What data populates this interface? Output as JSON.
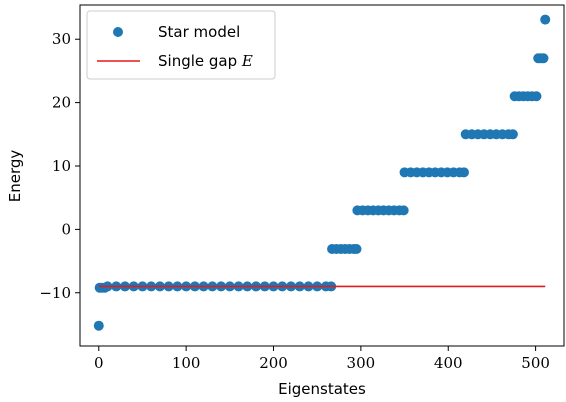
{
  "chart_data": {
    "type": "scatter",
    "xlabel": "Eigenstates",
    "ylabel": "Energy",
    "xlim": [
      -21.5,
      532.5
    ],
    "ylim": [
      -18.4,
      35.4
    ],
    "xticks": [
      0,
      100,
      200,
      300,
      400,
      500
    ],
    "xtick_labels": [
      "0",
      "100",
      "200",
      "300",
      "400",
      "500"
    ],
    "yticks": [
      -10,
      0,
      10,
      20,
      30
    ],
    "ytick_labels": [
      "−10",
      "0",
      "10",
      "20",
      "30"
    ],
    "grid": false,
    "legend_position": "top-left",
    "legend": {
      "star_label": "Star model",
      "gap_label_prefix": "Single gap ",
      "gap_label_symbol": "E"
    },
    "series": [
      {
        "name": "Star model",
        "kind": "scatter",
        "color": "#1f77b4",
        "points": [
          {
            "x": 0,
            "y": -15.2
          },
          {
            "x": 1,
            "y": -9.2
          },
          {
            "x": 4,
            "y": -9.2
          },
          {
            "x": 7,
            "y": -9.2
          },
          {
            "x": 10,
            "y": -9.0
          },
          {
            "x": 20,
            "y": -9.0
          },
          {
            "x": 30,
            "y": -9.0
          },
          {
            "x": 40,
            "y": -9.0
          },
          {
            "x": 50,
            "y": -9.0
          },
          {
            "x": 60,
            "y": -9.0
          },
          {
            "x": 70,
            "y": -9.0
          },
          {
            "x": 80,
            "y": -9.0
          },
          {
            "x": 90,
            "y": -9.0
          },
          {
            "x": 100,
            "y": -9.0
          },
          {
            "x": 110,
            "y": -9.0
          },
          {
            "x": 120,
            "y": -9.0
          },
          {
            "x": 130,
            "y": -9.0
          },
          {
            "x": 140,
            "y": -9.0
          },
          {
            "x": 150,
            "y": -9.0
          },
          {
            "x": 160,
            "y": -9.0
          },
          {
            "x": 170,
            "y": -9.0
          },
          {
            "x": 180,
            "y": -9.0
          },
          {
            "x": 190,
            "y": -9.0
          },
          {
            "x": 200,
            "y": -9.0
          },
          {
            "x": 210,
            "y": -9.0
          },
          {
            "x": 220,
            "y": -9.0
          },
          {
            "x": 230,
            "y": -9.0
          },
          {
            "x": 240,
            "y": -9.0
          },
          {
            "x": 250,
            "y": -9.0
          },
          {
            "x": 260,
            "y": -9.0
          },
          {
            "x": 266,
            "y": -9.0
          },
          {
            "x": 267,
            "y": -3.1
          },
          {
            "x": 272,
            "y": -3.1
          },
          {
            "x": 277,
            "y": -3.1
          },
          {
            "x": 282,
            "y": -3.1
          },
          {
            "x": 287,
            "y": -3.1
          },
          {
            "x": 292,
            "y": -3.1
          },
          {
            "x": 295,
            "y": -3.1
          },
          {
            "x": 296,
            "y": 3.0
          },
          {
            "x": 302,
            "y": 3.0
          },
          {
            "x": 308,
            "y": 3.0
          },
          {
            "x": 314,
            "y": 3.0
          },
          {
            "x": 320,
            "y": 3.0
          },
          {
            "x": 326,
            "y": 3.0
          },
          {
            "x": 332,
            "y": 3.0
          },
          {
            "x": 338,
            "y": 3.0
          },
          {
            "x": 344,
            "y": 3.0
          },
          {
            "x": 349,
            "y": 3.0
          },
          {
            "x": 350,
            "y": 9.0
          },
          {
            "x": 357,
            "y": 9.0
          },
          {
            "x": 364,
            "y": 9.0
          },
          {
            "x": 371,
            "y": 9.0
          },
          {
            "x": 378,
            "y": 9.0
          },
          {
            "x": 385,
            "y": 9.0
          },
          {
            "x": 392,
            "y": 9.0
          },
          {
            "x": 399,
            "y": 9.0
          },
          {
            "x": 406,
            "y": 9.0
          },
          {
            "x": 413,
            "y": 9.0
          },
          {
            "x": 418,
            "y": 9.0
          },
          {
            "x": 420,
            "y": 15.0
          },
          {
            "x": 427,
            "y": 15.0
          },
          {
            "x": 434,
            "y": 15.0
          },
          {
            "x": 441,
            "y": 15.0
          },
          {
            "x": 448,
            "y": 15.0
          },
          {
            "x": 455,
            "y": 15.0
          },
          {
            "x": 462,
            "y": 15.0
          },
          {
            "x": 469,
            "y": 15.0
          },
          {
            "x": 474,
            "y": 15.0
          },
          {
            "x": 476,
            "y": 21.0
          },
          {
            "x": 481,
            "y": 21.0
          },
          {
            "x": 486,
            "y": 21.0
          },
          {
            "x": 491,
            "y": 21.0
          },
          {
            "x": 496,
            "y": 21.0
          },
          {
            "x": 501,
            "y": 21.0
          },
          {
            "x": 503,
            "y": 27.0
          },
          {
            "x": 506,
            "y": 27.0
          },
          {
            "x": 509,
            "y": 27.0
          },
          {
            "x": 511,
            "y": 33.1
          }
        ]
      },
      {
        "name": "Single gap E",
        "kind": "line",
        "color": "#e31a1c",
        "x": [
          0,
          511
        ],
        "y": [
          -9.0,
          -9.0
        ]
      }
    ]
  }
}
